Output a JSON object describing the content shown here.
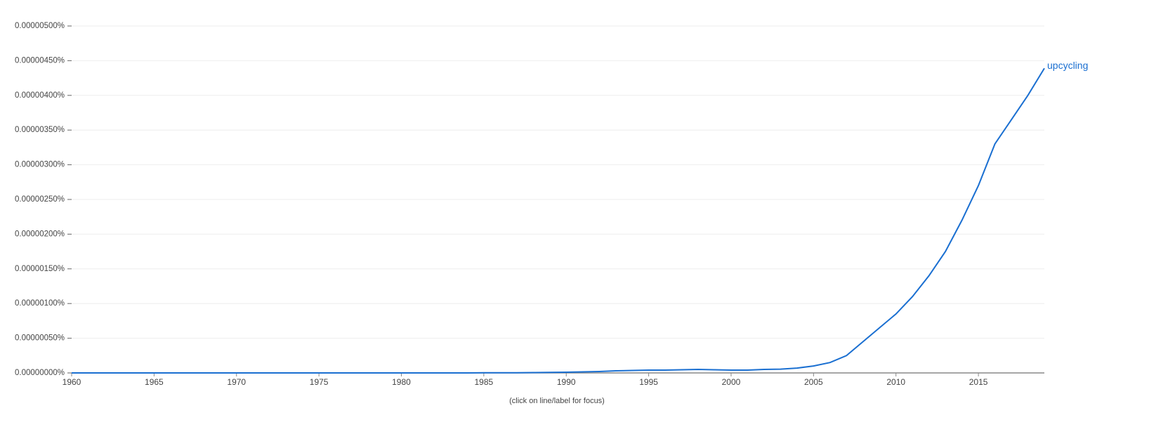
{
  "chart_data": {
    "type": "line",
    "x": [
      1960,
      1961,
      1962,
      1963,
      1964,
      1965,
      1966,
      1967,
      1968,
      1969,
      1970,
      1971,
      1972,
      1973,
      1974,
      1975,
      1976,
      1977,
      1978,
      1979,
      1980,
      1981,
      1982,
      1983,
      1984,
      1985,
      1986,
      1987,
      1988,
      1989,
      1990,
      1991,
      1992,
      1993,
      1994,
      1995,
      1996,
      1997,
      1998,
      1999,
      2000,
      2001,
      2002,
      2003,
      2004,
      2005,
      2006,
      2007,
      2008,
      2009,
      2010,
      2011,
      2012,
      2013,
      2014,
      2015,
      2016,
      2017,
      2018,
      2019
    ],
    "series": [
      {
        "name": "upcycling",
        "color": "#1a6fd1",
        "values": [
          0,
          0,
          0,
          0,
          0,
          0,
          0,
          0,
          0,
          0,
          0,
          0,
          0,
          0,
          0,
          0,
          0,
          0,
          0,
          0,
          0,
          0,
          0,
          0,
          0,
          2e-09,
          3e-09,
          3e-09,
          5e-09,
          7e-09,
          1e-08,
          1.5e-08,
          2e-08,
          3e-08,
          3.5e-08,
          4e-08,
          4e-08,
          4.5e-08,
          5e-08,
          4.5e-08,
          4e-08,
          4e-08,
          5e-08,
          5.5e-08,
          7e-08,
          1e-07,
          1.5e-07,
          2.5e-07,
          4.5e-07,
          6.5e-07,
          8.5e-07,
          1.1e-06,
          1.4e-06,
          1.75e-06,
          2.2e-06,
          2.7e-06,
          3.3e-06,
          3.65e-06,
          4e-06,
          4.39e-06
        ]
      }
    ],
    "xlim": [
      1960,
      2019
    ],
    "xticks": [
      1960,
      1965,
      1970,
      1975,
      1980,
      1985,
      1990,
      1995,
      2000,
      2005,
      2010,
      2015
    ],
    "ylim": [
      0,
      5e-06
    ],
    "yticks": [
      {
        "value": 0,
        "label": "0.00000000%"
      },
      {
        "value": 5e-07,
        "label": "0.00000050%"
      },
      {
        "value": 1e-06,
        "label": "0.00000100%"
      },
      {
        "value": 1.5e-06,
        "label": "0.00000150%"
      },
      {
        "value": 2e-06,
        "label": "0.00000200%"
      },
      {
        "value": 2.5e-06,
        "label": "0.00000250%"
      },
      {
        "value": 3e-06,
        "label": "0.00000300%"
      },
      {
        "value": 3.5e-06,
        "label": "0.00000350%"
      },
      {
        "value": 4e-06,
        "label": "0.00000400%"
      },
      {
        "value": 4.5e-06,
        "label": "0.00000450%"
      },
      {
        "value": 5e-06,
        "label": "0.00000500%"
      }
    ],
    "grid": true,
    "annotation": "(click on line/label for focus)"
  }
}
